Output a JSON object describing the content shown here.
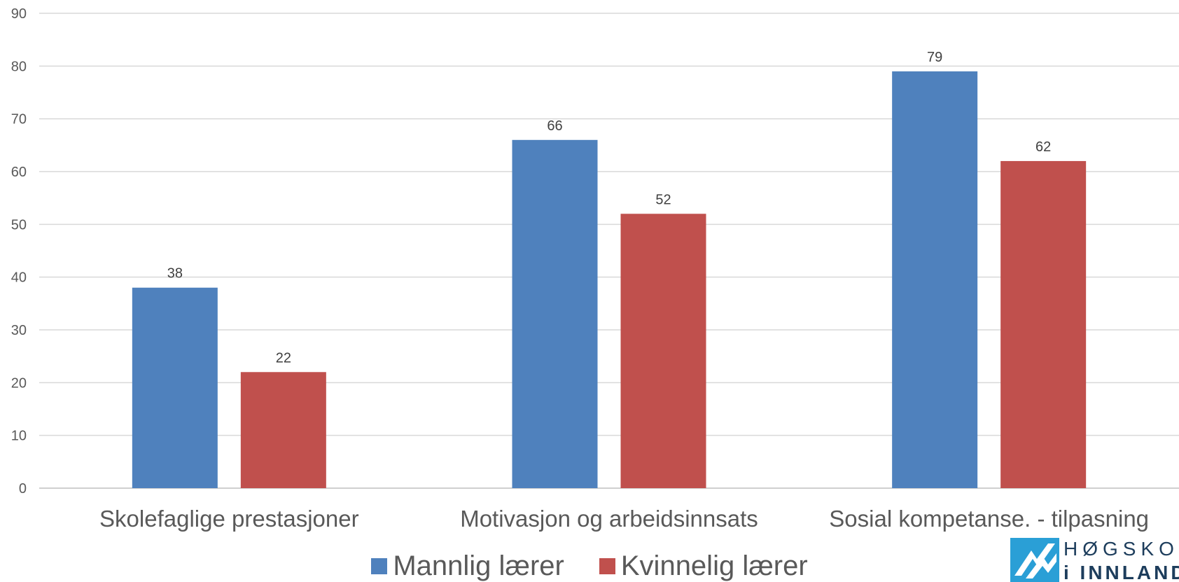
{
  "chart_data": {
    "type": "bar",
    "categories": [
      "Skolefaglige prestasjoner",
      "Motivasjon og arbeidsinnsats",
      "Sosial kompetanse. - tilpasning"
    ],
    "series": [
      {
        "name": "Mannlig lærer",
        "values": [
          38,
          66,
          79
        ],
        "color": "#4f81bd"
      },
      {
        "name": "Kvinnelig lærer",
        "values": [
          22,
          52,
          62
        ],
        "color": "#c0504d"
      }
    ],
    "ylim": [
      0,
      90
    ],
    "yticks": [
      0,
      10,
      20,
      30,
      40,
      50,
      60,
      70,
      80,
      90
    ],
    "grid": true,
    "legend_position": "bottom"
  },
  "logo": {
    "line1": "HØGSKOLEN",
    "line2": "i INNLANDET",
    "icon": "hinn-logo-icon"
  }
}
